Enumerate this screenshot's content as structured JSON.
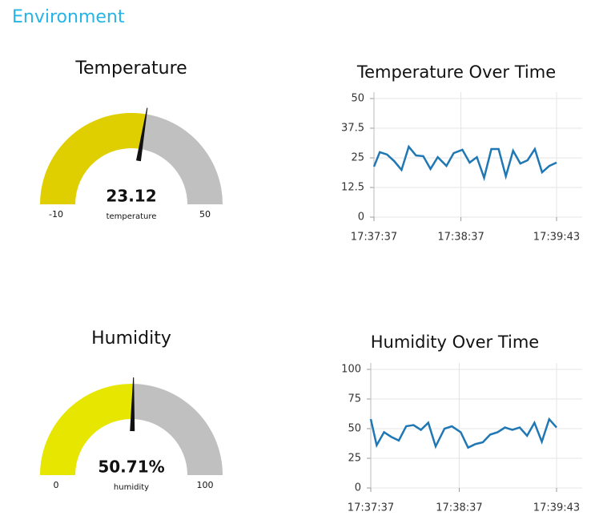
{
  "header": {
    "title": "Environment"
  },
  "chart_data": [
    {
      "type": "gauge",
      "title": "Temperature",
      "value": 23.12,
      "label": "temperature",
      "range": [
        -10,
        50
      ],
      "color": "#e0cf00",
      "track_color": "#c0c0c0"
    },
    {
      "type": "line",
      "title": "Temperature Over Time",
      "x": [
        "17:37:37",
        "17:37:41",
        "17:37:46",
        "17:37:51",
        "17:37:56",
        "17:38:01",
        "17:38:06",
        "17:38:11",
        "17:38:16",
        "17:38:21",
        "17:38:27",
        "17:38:32",
        "17:38:38",
        "17:38:43",
        "17:38:48",
        "17:38:53",
        "17:38:58",
        "17:39:03",
        "17:39:08",
        "17:39:13",
        "17:39:18",
        "17:39:23",
        "17:39:28",
        "17:39:33",
        "17:39:38",
        "17:39:43"
      ],
      "series": [
        {
          "color": "#1f77b4",
          "values": [
            21.3,
            27.4,
            26.4,
            23.6,
            19.9,
            29.7,
            26,
            25.7,
            20.3,
            25.3,
            21.6,
            27,
            28.4,
            23,
            25.3,
            16.6,
            28.7,
            28.7,
            17.2,
            28,
            22.6,
            24,
            28.7,
            18.9,
            21.6,
            23
          ]
        }
      ],
      "xlim": [
        "17:37:37",
        "17:39:43"
      ],
      "xticks": [
        "17:37:37",
        "17:38:37",
        "17:39:43"
      ],
      "ylim": [
        0,
        50
      ],
      "yticks": [
        0,
        12.5,
        25,
        37.5,
        50
      ],
      "grid": true
    },
    {
      "type": "gauge",
      "title": "Humidity",
      "value": 50.71,
      "value_label": "50.71%",
      "label": "humidity",
      "range": [
        0,
        100
      ],
      "color": "#e6e600",
      "track_color": "#c0c0c0"
    },
    {
      "type": "line",
      "title": "Humidity Over Time",
      "x": [
        "17:37:37",
        "17:37:41",
        "17:37:46",
        "17:37:51",
        "17:37:56",
        "17:38:01",
        "17:38:06",
        "17:38:11",
        "17:38:16",
        "17:38:21",
        "17:38:27",
        "17:38:32",
        "17:38:38",
        "17:38:43",
        "17:38:48",
        "17:38:53",
        "17:38:58",
        "17:39:03",
        "17:39:08",
        "17:39:13",
        "17:39:18",
        "17:39:23",
        "17:39:28",
        "17:39:33",
        "17:39:38",
        "17:39:43"
      ],
      "series": [
        {
          "color": "#1f77b4",
          "values": [
            58,
            36,
            47,
            43,
            40,
            52,
            53,
            49,
            55,
            35,
            50,
            52,
            47,
            34,
            37,
            38.5,
            45,
            47,
            51,
            49,
            51,
            44,
            55,
            39,
            58,
            51
          ]
        }
      ],
      "xlim": [
        "17:37:37",
        "17:39:43"
      ],
      "xticks": [
        "17:37:37",
        "17:38:37",
        "17:39:43"
      ],
      "ylim": [
        0,
        100
      ],
      "yticks": [
        0,
        25,
        50,
        75,
        100
      ],
      "grid": true
    }
  ]
}
